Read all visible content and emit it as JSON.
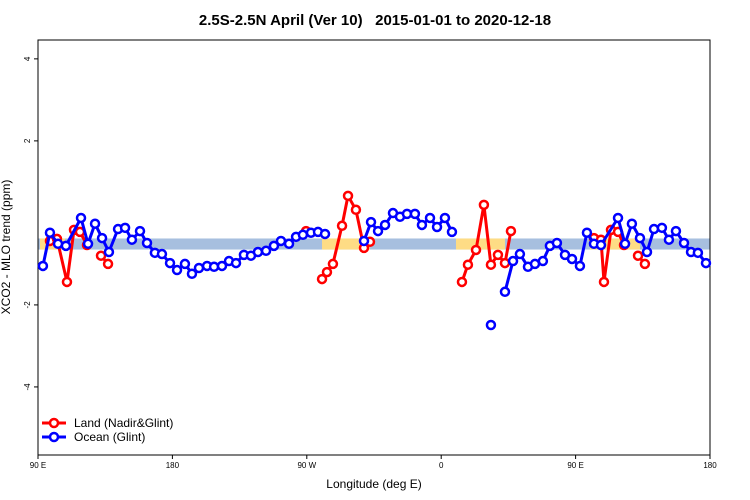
{
  "chart_data": {
    "type": "line",
    "title": "2.5S-2.5N April (Ver 10)   2015-01-01 to 2020-12-18",
    "x_label": "Longitude (deg E)",
    "y_label": "XCO2 - MLO trend (ppm)",
    "xlim": [
      90,
      540
    ],
    "xticks": [
      {
        "value": 90,
        "label": "90 E"
      },
      180,
      {
        "value": 270,
        "label": "90 W"
      },
      {
        "value": 360,
        "label": "0"
      },
      {
        "value": 450,
        "label": "90 E"
      },
      {
        "value": 540,
        "label": "180"
      }
    ],
    "ylim": [
      -5.66,
      4.46
    ],
    "yticks": [
      -4,
      -2,
      2,
      4
    ],
    "legend": "bottom-left",
    "bands": [
      {
        "color": "#a7bfdf",
        "x": [
          90,
          540
        ],
        "y": [
          -0.65,
          -0.38
        ]
      },
      {
        "color": "#fedc85",
        "x": [
          91.3,
          108.1
        ],
        "y": [
          -0.65,
          -0.38
        ]
      },
      {
        "color": "#fedc85",
        "x": [
          280.2,
          312.3
        ],
        "y": [
          -0.65,
          -0.38
        ]
      },
      {
        "color": "#fedc85",
        "x": [
          369.9,
          402.7
        ],
        "y": [
          -0.65,
          -0.38
        ]
      },
      {
        "color": "#fedc85",
        "x": [
          459.6,
          493.1
        ],
        "y": [
          -0.65,
          -0.38
        ]
      }
    ],
    "series": [
      {
        "name": "Land (Nadir&Glint)",
        "color": "#ff0000",
        "x": [
          98.0,
          102.7,
          109.4,
          114.1,
          118.1,
          122.8,
          null,
          132.2,
          136.9,
          null,
          269.5,
          null,
          280.2,
          283.5,
          287.5,
          293.6,
          297.6,
          302.9,
          308.3,
          312.3,
          null,
          373.9,
          377.9,
          383.3,
          388.6,
          393.3,
          398.0,
          402.7,
          406.7,
          null,
          462.3,
          467.0,
          469.0,
          473.7,
          478.4,
          482.4,
          null,
          491.8,
          496.4
        ],
        "values": [
          -0.44,
          -0.39,
          -1.44,
          -0.17,
          -0.22,
          -0.54,
          null,
          -0.8,
          -1.0,
          null,
          -0.2,
          null,
          -1.37,
          -1.2,
          -1.0,
          -0.07,
          0.66,
          0.32,
          -0.61,
          -0.46,
          null,
          -1.44,
          -1.02,
          -0.66,
          0.44,
          -1.02,
          -0.78,
          -0.98,
          -0.2,
          null,
          -0.37,
          -0.41,
          -1.44,
          -0.17,
          -0.22,
          -0.54,
          null,
          -0.8,
          -1.0
        ]
      },
      {
        "name": "Ocean (Glint)",
        "color": "#0000ff",
        "x": [
          93.3,
          98.0,
          103.4,
          108.7,
          118.8,
          123.5,
          128.2,
          132.9,
          137.5,
          143.6,
          148.3,
          152.9,
          158.3,
          163.0,
          168.3,
          173.0,
          178.4,
          183.1,
          188.4,
          193.1,
          197.8,
          203.2,
          207.9,
          213.2,
          217.9,
          222.6,
          227.9,
          232.6,
          237.3,
          242.7,
          248.0,
          252.7,
          258.1,
          262.8,
          267.4,
          272.8,
          277.5,
          282.2,
          null,
          308.3,
          313.0,
          317.7,
          322.4,
          327.7,
          332.4,
          337.1,
          342.4,
          347.1,
          352.5,
          357.2,
          362.5,
          367.2,
          null,
          393.3,
          null,
          402.7,
          408.1,
          412.7,
          418.1,
          422.8,
          428.1,
          432.8,
          437.5,
          442.9,
          447.6,
          452.9,
          457.6,
          462.3,
          467.0,
          478.4,
          483.1,
          487.7,
          493.1,
          497.8,
          502.5,
          507.8,
          512.5,
          517.2,
          522.6,
          527.3,
          531.9,
          537.3
        ],
        "values": [
          -1.05,
          -0.24,
          -0.51,
          -0.56,
          0.12,
          -0.51,
          -0.02,
          -0.37,
          -0.71,
          -0.15,
          -0.12,
          -0.41,
          -0.2,
          -0.49,
          -0.73,
          -0.76,
          -0.98,
          -1.15,
          -1.0,
          -1.24,
          -1.1,
          -1.05,
          -1.07,
          -1.05,
          -0.93,
          -0.98,
          -0.78,
          -0.8,
          -0.71,
          -0.68,
          -0.56,
          -0.44,
          -0.51,
          -0.34,
          -0.29,
          -0.24,
          -0.22,
          -0.27,
          null,
          -0.44,
          0.02,
          -0.2,
          -0.05,
          0.24,
          0.15,
          0.22,
          0.22,
          -0.05,
          0.12,
          -0.1,
          0.12,
          -0.22,
          null,
          -2.49,
          null,
          -1.68,
          -0.93,
          -0.76,
          -1.07,
          -1.0,
          -0.93,
          -0.56,
          -0.49,
          -0.78,
          -0.88,
          -1.05,
          -0.24,
          -0.51,
          -0.54,
          0.12,
          -0.51,
          -0.02,
          -0.37,
          -0.71,
          -0.15,
          -0.12,
          -0.41,
          -0.2,
          -0.49,
          -0.71,
          -0.73,
          -0.98
        ]
      }
    ]
  }
}
